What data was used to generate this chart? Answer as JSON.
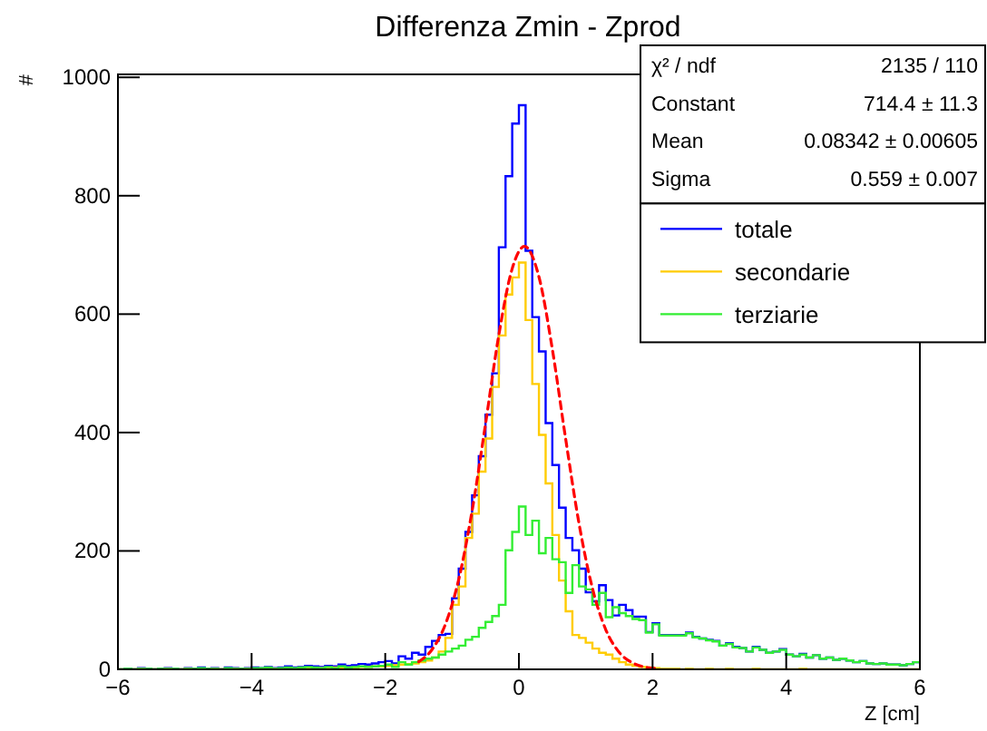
{
  "chart_data": {
    "type": "histogram",
    "title": "Differenza Zmin - Zprod",
    "xlabel": "Z [cm]",
    "ylabel": "#",
    "bins": [
      -6,
      -5.9,
      -5.8,
      -5.7,
      -5.6,
      -5.5,
      -5.4,
      -5.3,
      -5.2,
      -5.1,
      -5,
      -4.9,
      -4.8,
      -4.7,
      -4.6,
      -4.5,
      -4.4,
      -4.3,
      -4.2,
      -4.1,
      -4,
      -3.9,
      -3.8,
      -3.7,
      -3.6,
      -3.5,
      -3.4,
      -3.3,
      -3.2,
      -3.1,
      -3,
      -2.9,
      -2.8,
      -2.7,
      -2.6,
      -2.5,
      -2.4,
      -2.3,
      -2.2,
      -2.1,
      -2,
      -1.9,
      -1.8,
      -1.7,
      -1.6,
      -1.5,
      -1.4,
      -1.3,
      -1.2,
      -1.1,
      -1,
      -0.9,
      -0.8,
      -0.7,
      -0.6,
      -0.5,
      -0.4,
      -0.3,
      -0.2,
      -0.1,
      0,
      0.1,
      0.2,
      0.3,
      0.4,
      0.5,
      0.6,
      0.7,
      0.8,
      0.9,
      1,
      1.1,
      1.2,
      1.3,
      1.4,
      1.5,
      1.6,
      1.7,
      1.8,
      1.9,
      2,
      2.1,
      2.2,
      2.3,
      2.4,
      2.5,
      2.6,
      2.7,
      2.8,
      2.9,
      3,
      3.1,
      3.2,
      3.3,
      3.4,
      3.5,
      3.6,
      3.7,
      3.8,
      3.9,
      4,
      4.1,
      4.2,
      4.3,
      4.4,
      4.5,
      4.6,
      4.7,
      4.8,
      4.9,
      5,
      5.1,
      5.2,
      5.3,
      5.4,
      5.5,
      5.6,
      5.7,
      5.8,
      5.9,
      6
    ],
    "series": [
      {
        "name": "totale",
        "color": "#0000ff",
        "values": [
          0,
          1,
          0,
          2,
          1,
          0,
          1,
          2,
          1,
          0,
          2,
          1,
          3,
          1,
          2,
          0,
          3,
          2,
          1,
          2,
          3,
          2,
          4,
          2,
          3,
          5,
          3,
          4,
          6,
          5,
          4,
          6,
          5,
          8,
          6,
          7,
          9,
          8,
          10,
          12,
          14,
          10,
          22,
          18,
          28,
          25,
          38,
          48,
          58,
          60,
          120,
          170,
          232,
          294,
          360,
          430,
          500,
          713,
          833,
          922,
          953,
          707,
          595,
          537,
          416,
          345,
          273,
          222,
          201,
          170,
          130,
          115,
          142,
          117,
          91,
          109,
          100,
          89,
          89,
          63,
          78,
          58,
          58,
          58,
          58,
          62,
          55,
          52,
          50,
          48,
          40,
          44,
          38,
          36,
          30,
          38,
          33,
          28,
          30,
          34,
          25,
          22,
          26,
          20,
          24,
          18,
          20,
          16,
          18,
          15,
          12,
          14,
          10,
          9,
          10,
          8,
          8,
          7,
          9,
          12
        ]
      },
      {
        "name": "secondarie",
        "color": "#ffcc00",
        "values": [
          0,
          0,
          0,
          1,
          0,
          0,
          0,
          1,
          0,
          0,
          1,
          0,
          1,
          0,
          1,
          0,
          1,
          1,
          0,
          1,
          1,
          0,
          1,
          1,
          1,
          2,
          1,
          1,
          2,
          2,
          2,
          2,
          3,
          3,
          3,
          3,
          4,
          4,
          5,
          5,
          6,
          7,
          8,
          9,
          10,
          12,
          15,
          20,
          30,
          53,
          109,
          140,
          222,
          263,
          334,
          390,
          477,
          564,
          633,
          662,
          687,
          590,
          482,
          396,
          314,
          227,
          150,
          98,
          58,
          53,
          45,
          35,
          28,
          25,
          18,
          12,
          8,
          6,
          4,
          3,
          2,
          1,
          1,
          1,
          0,
          1,
          0,
          0,
          1,
          0,
          0,
          1,
          0,
          0,
          0,
          1,
          0,
          0,
          0,
          0,
          0,
          0,
          1,
          0,
          0,
          0,
          0,
          0,
          0,
          0,
          0,
          0,
          0,
          0,
          0,
          0,
          0,
          0,
          0,
          0
        ]
      },
      {
        "name": "terziarie",
        "color": "#33ee33",
        "values": [
          0,
          1,
          0,
          1,
          1,
          0,
          1,
          1,
          1,
          0,
          1,
          1,
          2,
          1,
          1,
          0,
          2,
          1,
          1,
          1,
          2,
          2,
          3,
          1,
          2,
          3,
          2,
          3,
          4,
          3,
          2,
          4,
          2,
          5,
          3,
          4,
          5,
          4,
          5,
          6,
          8,
          4,
          12,
          8,
          12,
          15,
          18,
          20,
          25,
          30,
          35,
          40,
          50,
          55,
          70,
          80,
          90,
          109,
          201,
          232,
          275,
          227,
          251,
          196,
          222,
          186,
          181,
          129,
          176,
          140,
          135,
          109,
          129,
          88,
          105,
          95,
          90,
          85,
          83,
          62,
          76,
          57,
          57,
          57,
          57,
          61,
          54,
          52,
          49,
          47,
          40,
          43,
          37,
          36,
          30,
          37,
          33,
          28,
          30,
          33,
          25,
          22,
          25,
          20,
          24,
          18,
          20,
          16,
          18,
          15,
          12,
          14,
          10,
          9,
          10,
          8,
          8,
          7,
          9,
          12
        ]
      },
      {
        "type": "line",
        "color": "#ff0000",
        "line_style": "dashed",
        "x": [
          -1.5,
          -1.3,
          -1.1,
          -0.9,
          -0.7,
          -0.5,
          -0.3,
          -0.1,
          0.0834,
          0.3,
          0.5,
          0.7,
          0.9,
          1.1,
          1.3,
          1.5,
          1.7,
          1.9,
          2.1
        ],
        "values": [
          12.9,
          33.4,
          76,
          152,
          268,
          414,
          565,
          677,
          714.4,
          663,
          541,
          389,
          246,
          137,
          67,
          28.8,
          10.9,
          3.6,
          1.1
        ]
      }
    ],
    "xlim": [
      -6,
      6
    ],
    "xticks": [
      {
        "value": -6,
        "label": "−6"
      },
      {
        "value": -4,
        "label": "−4"
      },
      {
        "value": -2,
        "label": "−2"
      },
      0,
      2,
      4,
      6
    ],
    "ylim": [
      0,
      1005
    ],
    "yticks": [
      0,
      200,
      400,
      600,
      800,
      1000
    ],
    "legend": "top right",
    "annotations": [
      "χ² / ndf",
      "2135 / 110",
      "Constant",
      "714.4 ± 11.3",
      "Mean",
      "0.08342 ± 0.00605",
      "Sigma",
      "0.559 ± 0.007"
    ]
  }
}
